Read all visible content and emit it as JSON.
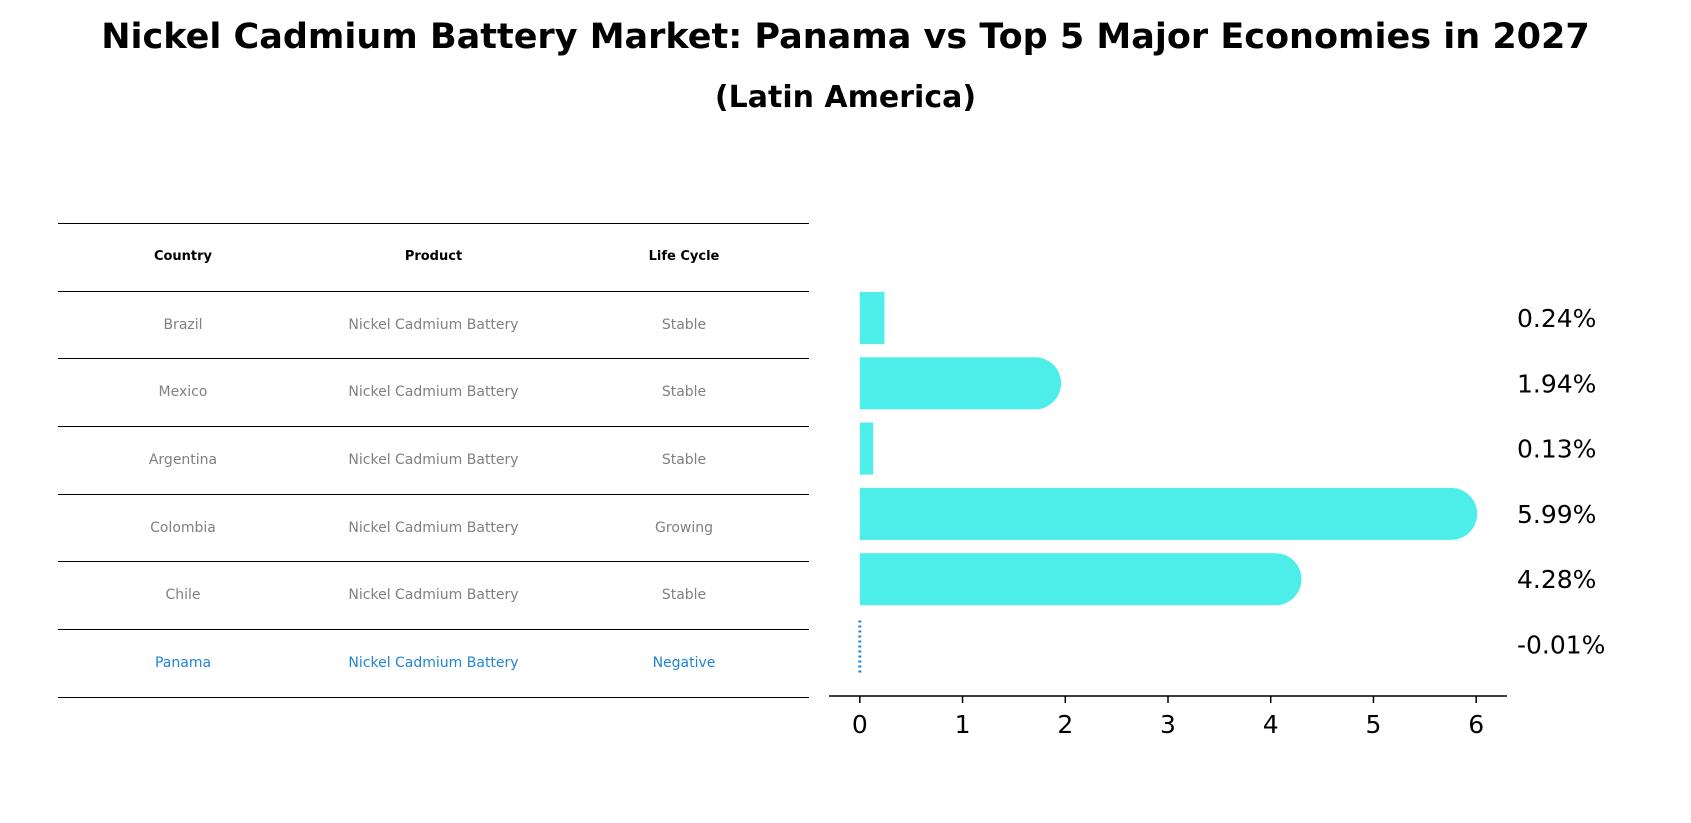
{
  "title": "Nickel Cadmium Battery Market: Panama vs Top 5 Major Economies in 2027",
  "subtitle": "(Latin America)",
  "table": {
    "headers": [
      "Country",
      "Product",
      "Life Cycle"
    ],
    "rows": [
      {
        "country": "Brazil",
        "product": "Nickel Cadmium Battery",
        "life_cycle": "Stable"
      },
      {
        "country": "Mexico",
        "product": "Nickel Cadmium Battery",
        "life_cycle": "Stable"
      },
      {
        "country": "Argentina",
        "product": "Nickel Cadmium Battery",
        "life_cycle": "Stable"
      },
      {
        "country": "Colombia",
        "product": "Nickel Cadmium Battery",
        "life_cycle": "Growing"
      },
      {
        "country": "Chile",
        "product": "Nickel Cadmium Battery",
        "life_cycle": "Stable"
      },
      {
        "country": "Panama",
        "product": "Nickel Cadmium Battery",
        "life_cycle": "Negative"
      }
    ]
  },
  "colors": {
    "bar": "#4deeea",
    "highlight": "#1f85d6",
    "muted_text": "#808080"
  },
  "chart_data": {
    "type": "bar",
    "orientation": "horizontal",
    "categories": [
      "Brazil",
      "Mexico",
      "Argentina",
      "Colombia",
      "Chile",
      "Panama"
    ],
    "values": [
      0.24,
      1.94,
      0.13,
      5.99,
      4.28,
      -0.01
    ],
    "value_labels": [
      "0.24%",
      "1.94%",
      "0.13%",
      "5.99%",
      "4.28%",
      "-0.01%"
    ],
    "xlim": [
      -0.3,
      6.3
    ],
    "xticks": [
      0,
      1,
      2,
      3,
      4,
      5,
      6
    ],
    "xlabel": "",
    "ylabel": "",
    "grid": false
  }
}
